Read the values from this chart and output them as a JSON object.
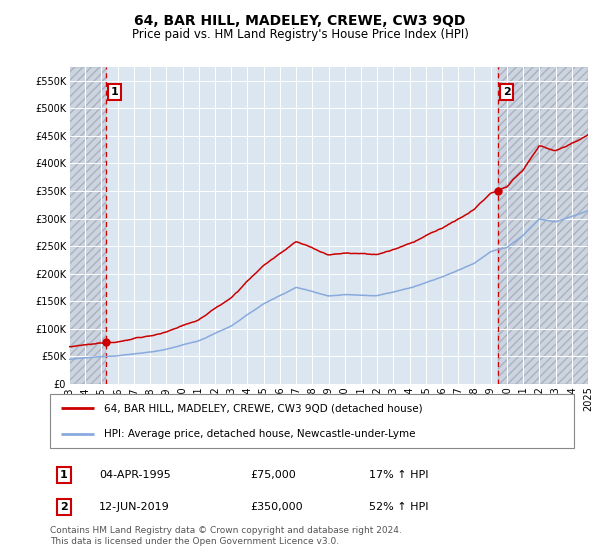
{
  "title": "64, BAR HILL, MADELEY, CREWE, CW3 9QD",
  "subtitle": "Price paid vs. HM Land Registry's House Price Index (HPI)",
  "ylim": [
    0,
    575000
  ],
  "yticks": [
    0,
    50000,
    100000,
    150000,
    200000,
    250000,
    300000,
    350000,
    400000,
    450000,
    500000,
    550000
  ],
  "ytick_labels": [
    "£0",
    "£50K",
    "£100K",
    "£150K",
    "£200K",
    "£250K",
    "£300K",
    "£350K",
    "£400K",
    "£450K",
    "£500K",
    "£550K"
  ],
  "xticks": [
    1993,
    1994,
    1995,
    1996,
    1997,
    1998,
    1999,
    2000,
    2001,
    2002,
    2003,
    2004,
    2005,
    2006,
    2007,
    2008,
    2009,
    2010,
    2011,
    2012,
    2013,
    2014,
    2015,
    2016,
    2017,
    2018,
    2019,
    2020,
    2021,
    2022,
    2023,
    2024,
    2025
  ],
  "xlim": [
    1993,
    2025
  ],
  "sale1_x": 1995.27,
  "sale1_y": 75000,
  "sale2_x": 2019.45,
  "sale2_y": 350000,
  "line1_color": "#cc0000",
  "line2_color": "#88aadd",
  "marker_color": "#cc0000",
  "plot_bg": "#dce6f0",
  "legend_line1": "64, BAR HILL, MADELEY, CREWE, CW3 9QD (detached house)",
  "legend_line2": "HPI: Average price, detached house, Newcastle-under-Lyme",
  "table_row1": [
    "1",
    "04-APR-1995",
    "£75,000",
    "17% ↑ HPI"
  ],
  "table_row2": [
    "2",
    "12-JUN-2019",
    "£350,000",
    "52% ↑ HPI"
  ],
  "footer": "Contains HM Land Registry data © Crown copyright and database right 2024.\nThis data is licensed under the Open Government Licence v3.0.",
  "title_fontsize": 10,
  "subtitle_fontsize": 8.5,
  "axis_fontsize": 7
}
